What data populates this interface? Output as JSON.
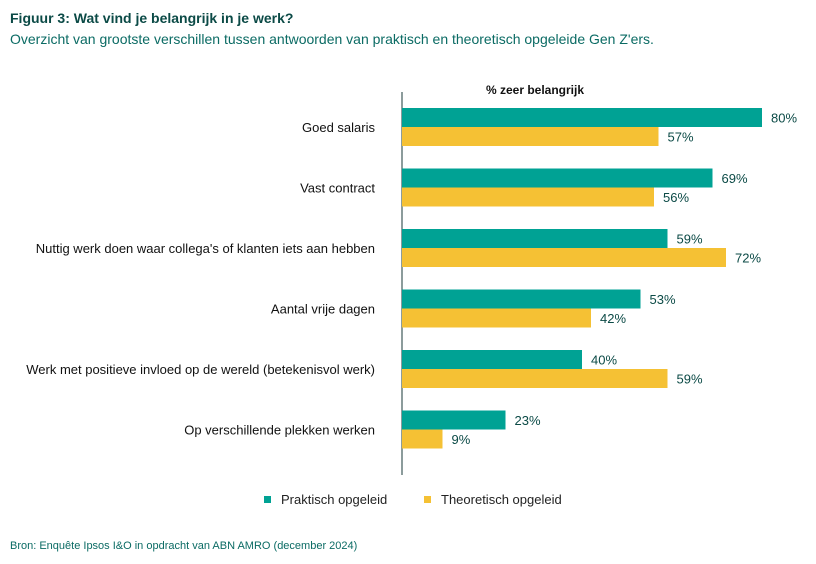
{
  "header": {
    "title": "Figuur 3: Wat vind je belangrijk in je werk?",
    "subtitle": "Overzicht van grootste verschillen tussen antwoorden van praktisch en theoretisch opgeleide Gen Z'ers."
  },
  "footer": {
    "source": "Bron: Enquête Ipsos I&O in opdracht van ABN AMRO (december 2024)"
  },
  "colors": {
    "praktisch": "#00a294",
    "theoretisch": "#f5c134",
    "title": "#0b4a46",
    "value_text": "#0b4a46"
  },
  "chart_data": {
    "type": "bar",
    "orientation": "horizontal",
    "title": "% zeer belangrijk",
    "categories": [
      "Goed salaris",
      "Vast contract",
      "Nuttig werk doen waar collega's of klanten iets aan hebben",
      "Aantal vrije dagen",
      "Werk met positieve invloed op de wereld (betekenisvol werk)",
      "Op verschillende plekken werken"
    ],
    "series": [
      {
        "name": "Praktisch opgeleid",
        "values": [
          80,
          69,
          59,
          53,
          40,
          23
        ],
        "labels": [
          "80%",
          "69%",
          "59%",
          "53%",
          "40%",
          "23%"
        ]
      },
      {
        "name": "Theoretisch opgeleid",
        "values": [
          57,
          56,
          72,
          42,
          59,
          9
        ],
        "labels": [
          "57%",
          "56%",
          "72%",
          "42%",
          "59%",
          "9%"
        ]
      }
    ],
    "xlim": [
      0,
      100
    ],
    "grid": false,
    "legend": "bottom"
  }
}
